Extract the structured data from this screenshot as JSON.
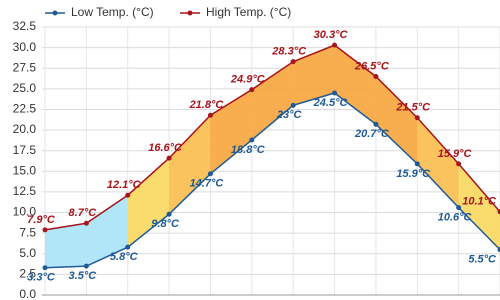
{
  "chart_data": {
    "type": "line",
    "categories": [
      null,
      null,
      null,
      null,
      null,
      null,
      null,
      null,
      null,
      null,
      null,
      null
    ],
    "series": [
      {
        "name": "Low Temp. (°C)",
        "color": "#1f5a96",
        "values": [
          3.3,
          3.5,
          5.8,
          9.8,
          14.7,
          18.8,
          23,
          24.5,
          20.7,
          15.9,
          10.6,
          5.5
        ],
        "value_labels": [
          "3.3°C",
          "3.5°C",
          "5.8°C",
          "9.8°C",
          "14.7°C",
          "18.8°C",
          "23°C",
          "24.5°C",
          "20.7°C",
          "15.9°C",
          "10.6°C",
          "5.5°C"
        ]
      },
      {
        "name": "High Temp. (°C)",
        "color": "#a8141c",
        "values": [
          7.9,
          8.7,
          12.1,
          16.6,
          21.8,
          24.9,
          28.3,
          30.3,
          26.5,
          21.5,
          15.9,
          10.1
        ],
        "value_labels": [
          "7.9°C",
          "8.7°C",
          "12.1°C",
          "16.6°C",
          "21.8°C",
          "24.9°C",
          "28.3°C",
          "30.3°C",
          "26.5°C",
          "21.5°C",
          "15.9°C",
          "10.1°C"
        ]
      }
    ],
    "ylim": [
      0,
      32.5
    ],
    "yticks": [
      {
        "value": 0,
        "label": "0.0"
      },
      2.5,
      {
        "value": 5,
        "label": "5.0"
      },
      7.5,
      {
        "value": 10,
        "label": "10.0"
      },
      12.5,
      {
        "value": 15,
        "label": "15.0"
      },
      17.5,
      {
        "value": 20,
        "label": "20.0"
      },
      22.5,
      {
        "value": 25,
        "label": "25.0"
      },
      27.5,
      {
        "value": 30,
        "label": "30.0"
      },
      32.5
    ],
    "grid": true
  }
}
